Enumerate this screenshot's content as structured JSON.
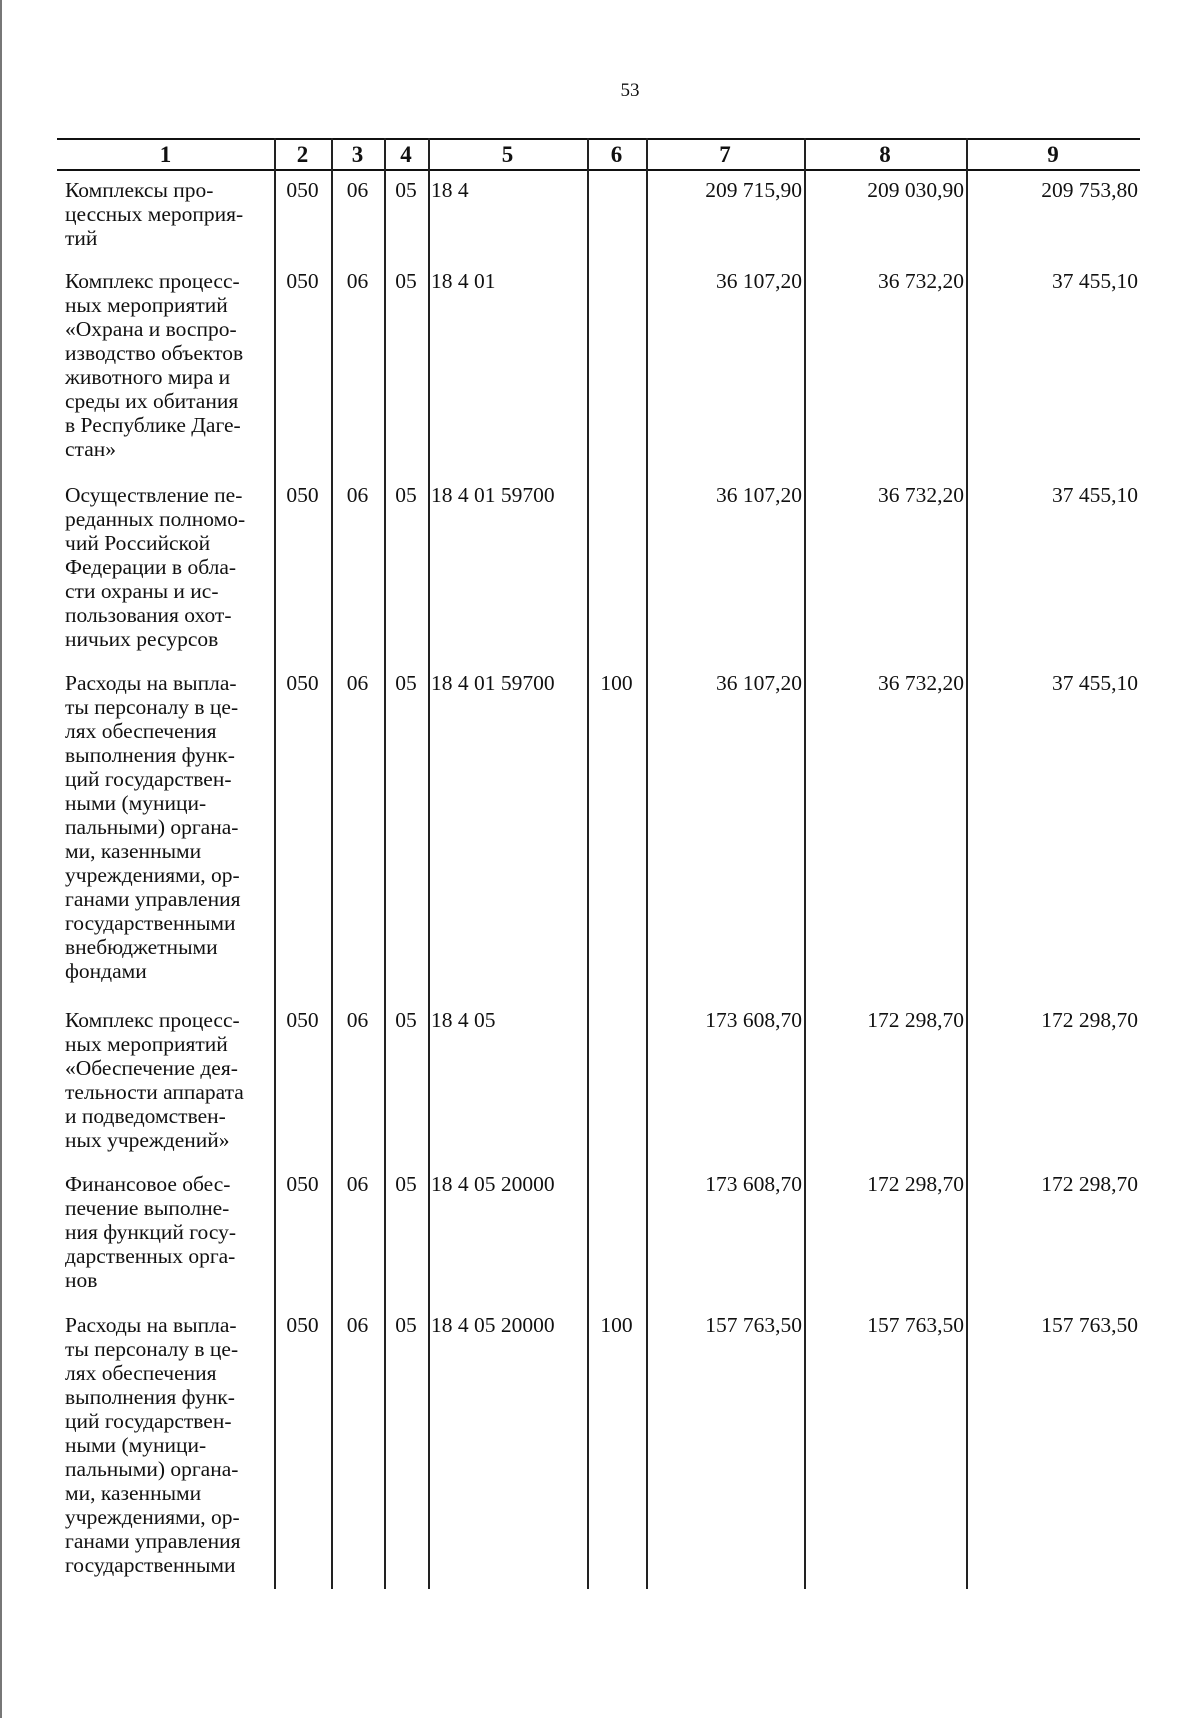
{
  "page_number": "53",
  "columns": [
    "1",
    "2",
    "3",
    "4",
    "5",
    "6",
    "7",
    "8",
    "9"
  ],
  "rows": [
    {
      "name": "Комплексы про-\nцессных мероприя-\nтий",
      "c2": "050",
      "c3": "06",
      "c4": "05",
      "c5": "18 4",
      "c6": "",
      "c7": "209 715,90",
      "c8": "209 030,90",
      "c9": "209 753,80"
    },
    {
      "name": "Комплекс процесс-\nных мероприятий\n«Охрана и воспро-\nизводство объектов\nживотного мира и\nсреды их обитания\nв Республике Даге-\nстан»",
      "c2": "050",
      "c3": "06",
      "c4": "05",
      "c5": "18 4 01",
      "c6": "",
      "c7": "36 107,20",
      "c8": "36 732,20",
      "c9": "37 455,10"
    },
    {
      "name": "Осуществление пе-\nреданных полномо-\nчий Российской\nФедерации в обла-\nсти охраны и ис-\nпользования охот-\nничьих ресурсов",
      "c2": "050",
      "c3": "06",
      "c4": "05",
      "c5": "18 4 01 59700",
      "c6": "",
      "c7": "36 107,20",
      "c8": "36 732,20",
      "c9": "37 455,10"
    },
    {
      "name": "Расходы на выпла-\nты персоналу в це-\nлях обеспечения\nвыполнения функ-\nций государствен-\nными (муници-\nпальными) органа-\nми, казенными\nучреждениями, ор-\nганами управления\nгосударственными\nвнебюджетными\nфондами",
      "c2": "050",
      "c3": "06",
      "c4": "05",
      "c5": "18 4 01 59700",
      "c6": "100",
      "c7": "36 107,20",
      "c8": "36 732,20",
      "c9": "37 455,10"
    },
    {
      "name": "Комплекс процесс-\nных мероприятий\n«Обеспечение дея-\nтельности аппарата\nи подведомствен-\nных учреждений»",
      "c2": "050",
      "c3": "06",
      "c4": "05",
      "c5": "18 4 05",
      "c6": "",
      "c7": "173 608,70",
      "c8": "172 298,70",
      "c9": "172 298,70"
    },
    {
      "name": "Финансовое обес-\nпечение выполне-\nния функций госу-\nдарственных орга-\nнов",
      "c2": "050",
      "c3": "06",
      "c4": "05",
      "c5": "18 4 05 20000",
      "c6": "",
      "c7": "173 608,70",
      "c8": "172 298,70",
      "c9": "172 298,70"
    },
    {
      "name": "Расходы на выпла-\nты персоналу в це-\nлях обеспечения\nвыполнения функ-\nций государствен-\nными (муници-\nпальными) органа-\nми, казенными\nучреждениями, ор-\nганами управления\nгосударственными",
      "c2": "050",
      "c3": "06",
      "c4": "05",
      "c5": "18 4 05 20000",
      "c6": "100",
      "c7": "157 763,50",
      "c8": "157 763,50",
      "c9": "157 763,50"
    }
  ]
}
